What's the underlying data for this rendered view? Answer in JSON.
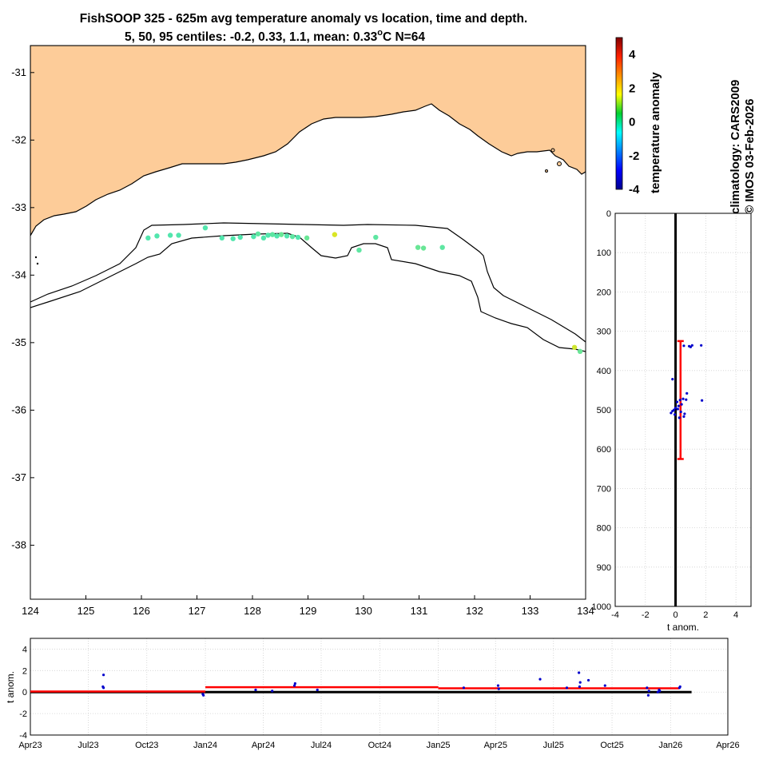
{
  "title": {
    "line1": "FishSOOP 325 - 625m avg temperature anomaly vs location, time and depth.",
    "line2_prefix": "5, 50, 95 centiles: -0.2, 0.33, 1.1, mean: 0.33",
    "line2_unit_sup": "o",
    "line2_suffix": "C N=64"
  },
  "side_text": {
    "climatology": "climatology: CARS2009",
    "credit": "© IMOS 03-Feb-2026"
  },
  "colors": {
    "land": "#fdcc99",
    "coast": "#000000",
    "profile_dots": "#0000cc",
    "centile_bar": "#ff0000",
    "zero_line": "#000000",
    "grid": "#d0d0d0"
  },
  "chart_data": [
    {
      "type": "scatter",
      "name": "map",
      "xlim": [
        124,
        134
      ],
      "ylim": [
        -38.8,
        -30.6
      ],
      "xticks": [
        "124",
        "125",
        "126",
        "127",
        "128",
        "129",
        "130",
        "131",
        "132",
        "133",
        "134"
      ],
      "yticks": [
        "-31",
        "-32",
        "-33",
        "-34",
        "-35",
        "-36",
        "-37",
        "-38"
      ],
      "colorbar": {
        "label": "temperature anomaly",
        "range": [
          -4,
          5
        ],
        "ticks": [
          "4",
          "2",
          "0",
          "-2",
          "-4"
        ]
      },
      "points": [
        {
          "lon": 126.12,
          "lat": -33.45,
          "anom": 0.1
        },
        {
          "lon": 126.28,
          "lat": -33.42,
          "anom": 0.1
        },
        {
          "lon": 126.52,
          "lat": -33.41,
          "anom": 0.1
        },
        {
          "lon": 126.67,
          "lat": -33.41,
          "anom": 0.1
        },
        {
          "lon": 127.15,
          "lat": -33.3,
          "anom": 0.1
        },
        {
          "lon": 127.45,
          "lat": -33.45,
          "anom": 0.1
        },
        {
          "lon": 127.65,
          "lat": -33.46,
          "anom": 0.1
        },
        {
          "lon": 127.78,
          "lat": -33.44,
          "anom": 0.1
        },
        {
          "lon": 128.02,
          "lat": -33.43,
          "anom": 0.1
        },
        {
          "lon": 128.1,
          "lat": -33.39,
          "anom": 0.2
        },
        {
          "lon": 128.2,
          "lat": -33.45,
          "anom": 0.1
        },
        {
          "lon": 128.28,
          "lat": -33.41,
          "anom": 0.1
        },
        {
          "lon": 128.36,
          "lat": -33.4,
          "anom": 0.2
        },
        {
          "lon": 128.44,
          "lat": -33.42,
          "anom": 0.1
        },
        {
          "lon": 128.52,
          "lat": -33.4,
          "anom": 0.3
        },
        {
          "lon": 128.62,
          "lat": -33.42,
          "anom": 0.1
        },
        {
          "lon": 128.72,
          "lat": -33.43,
          "anom": 0.2
        },
        {
          "lon": 128.82,
          "lat": -33.44,
          "anom": 0.1
        },
        {
          "lon": 128.98,
          "lat": -33.45,
          "anom": 0.3
        },
        {
          "lon": 129.48,
          "lat": -33.4,
          "anom": 1.3
        },
        {
          "lon": 129.92,
          "lat": -33.63,
          "anom": 0.2
        },
        {
          "lon": 130.22,
          "lat": -33.44,
          "anom": 0.2
        },
        {
          "lon": 130.98,
          "lat": -33.59,
          "anom": 0.3
        },
        {
          "lon": 131.08,
          "lat": -33.6,
          "anom": 0.3
        },
        {
          "lon": 131.42,
          "lat": -33.59,
          "anom": 0.2
        },
        {
          "lon": 133.8,
          "lat": -35.07,
          "anom": 1.2
        },
        {
          "lon": 133.9,
          "lat": -35.13,
          "anom": 0.3
        }
      ]
    },
    {
      "type": "scatter",
      "name": "depth_profile",
      "xlabel": "t anom.",
      "xlim": [
        -4,
        5
      ],
      "ylim": [
        0,
        1000
      ],
      "xticks": [
        "-4",
        "-2",
        "0",
        "2",
        "4"
      ],
      "yticks": [
        "0",
        "100",
        "200",
        "300",
        "400",
        "500",
        "600",
        "700",
        "800",
        "900",
        "1000"
      ],
      "centile_bar": {
        "x": 0.33,
        "depth_from": 325,
        "depth_to": 625
      },
      "points": [
        {
          "x": -0.2,
          "depth": 422
        },
        {
          "x": 0.55,
          "depth": 337
        },
        {
          "x": 1.0,
          "depth": 340
        },
        {
          "x": 1.1,
          "depth": 336
        },
        {
          "x": 1.7,
          "depth": 336
        },
        {
          "x": 0.9,
          "depth": 338
        },
        {
          "x": 1.75,
          "depth": 476
        },
        {
          "x": 0.75,
          "depth": 458
        },
        {
          "x": 0.7,
          "depth": 474
        },
        {
          "x": 0.5,
          "depth": 472
        },
        {
          "x": 0.3,
          "depth": 475
        },
        {
          "x": 0.1,
          "depth": 480
        },
        {
          "x": 0.2,
          "depth": 490
        },
        {
          "x": 0.0,
          "depth": 495
        },
        {
          "x": -0.1,
          "depth": 500
        },
        {
          "x": 0.35,
          "depth": 505
        },
        {
          "x": 0.6,
          "depth": 510
        },
        {
          "x": 0.55,
          "depth": 517
        },
        {
          "x": -0.3,
          "depth": 508
        },
        {
          "x": -0.05,
          "depth": 512
        },
        {
          "x": 0.15,
          "depth": 498
        },
        {
          "x": 0.4,
          "depth": 486
        },
        {
          "x": 0.25,
          "depth": 520
        },
        {
          "x": -0.2,
          "depth": 503
        }
      ]
    },
    {
      "type": "line",
      "name": "time_series",
      "ylabel": "t anom.",
      "ylim": [
        -4,
        5
      ],
      "yticks": [
        "4",
        "2",
        "0",
        "-2",
        "-4"
      ],
      "x_range": [
        "2023-04-01",
        "2026-04-01"
      ],
      "xticks": [
        {
          "date": "2023-04-01",
          "label": "Apr23"
        },
        {
          "date": "2023-07-01",
          "label": "Jul23"
        },
        {
          "date": "2023-10-01",
          "label": "Oct23"
        },
        {
          "date": "2024-01-01",
          "label": "Jan24"
        },
        {
          "date": "2024-04-01",
          "label": "Apr24"
        },
        {
          "date": "2024-07-01",
          "label": "Jul24"
        },
        {
          "date": "2024-10-01",
          "label": "Oct24"
        },
        {
          "date": "2025-01-01",
          "label": "Jan25"
        },
        {
          "date": "2025-04-01",
          "label": "Apr25"
        },
        {
          "date": "2025-07-01",
          "label": "Jul25"
        },
        {
          "date": "2025-10-01",
          "label": "Oct25"
        },
        {
          "date": "2026-01-01",
          "label": "Jan26"
        },
        {
          "date": "2026-04-01",
          "label": "Apr26"
        }
      ],
      "zero_line": {
        "from": "2023-04-01",
        "to": "2026-02-03"
      },
      "mean_segments": [
        {
          "from": "2023-04-01",
          "to": "2024-01-01",
          "value": 0.05
        },
        {
          "from": "2024-01-01",
          "to": "2025-01-01",
          "value": 0.45
        },
        {
          "from": "2025-01-01",
          "to": "2026-01-15",
          "value": 0.35
        }
      ],
      "points": [
        {
          "date": "2023-07-25",
          "value": 1.6
        },
        {
          "date": "2023-07-24",
          "value": 0.5
        },
        {
          "date": "2023-07-25",
          "value": 0.4
        },
        {
          "date": "2023-12-28",
          "value": -0.2
        },
        {
          "date": "2023-12-29",
          "value": -0.3
        },
        {
          "date": "2024-03-20",
          "value": 0.2
        },
        {
          "date": "2024-04-15",
          "value": 0.1
        },
        {
          "date": "2024-05-20",
          "value": 0.6
        },
        {
          "date": "2024-05-21",
          "value": 0.8
        },
        {
          "date": "2024-06-25",
          "value": 0.2
        },
        {
          "date": "2025-02-10",
          "value": 0.4
        },
        {
          "date": "2025-04-05",
          "value": 0.6
        },
        {
          "date": "2025-04-06",
          "value": 0.3
        },
        {
          "date": "2025-06-10",
          "value": 1.2
        },
        {
          "date": "2025-07-22",
          "value": 0.4
        },
        {
          "date": "2025-08-10",
          "value": 1.8
        },
        {
          "date": "2025-08-11",
          "value": 0.5
        },
        {
          "date": "2025-08-12",
          "value": 0.9
        },
        {
          "date": "2025-08-25",
          "value": 1.1
        },
        {
          "date": "2025-09-20",
          "value": 0.6
        },
        {
          "date": "2025-11-25",
          "value": 0.4
        },
        {
          "date": "2025-11-27",
          "value": -0.3
        },
        {
          "date": "2025-11-28",
          "value": 0.1
        },
        {
          "date": "2025-12-12",
          "value": 0.0
        },
        {
          "date": "2025-12-14",
          "value": 0.2
        },
        {
          "date": "2025-12-15",
          "value": 0.1
        },
        {
          "date": "2026-01-15",
          "value": 0.4
        },
        {
          "date": "2026-01-16",
          "value": 0.5
        }
      ]
    }
  ]
}
